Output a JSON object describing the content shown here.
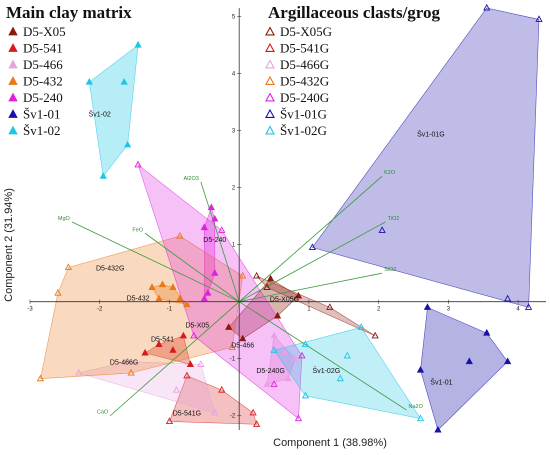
{
  "chart_data": {
    "type": "scatter",
    "xlabel": "Component 1 (38.98%)",
    "ylabel": "Component 2 (31.94%)",
    "xlim": [
      -3.0,
      4.4
    ],
    "ylim": [
      -2.25,
      5.15
    ],
    "xticks": [
      "-3",
      "-2",
      "-1",
      "1",
      "2",
      "3",
      "4"
    ],
    "xtick_values": [
      -3,
      -2,
      -1,
      1,
      2,
      3,
      4
    ],
    "yticks": [
      "-2",
      "-1",
      "1",
      "2",
      "3",
      "4",
      "5"
    ],
    "ytick_values": [
      -2,
      -1,
      1,
      2,
      3,
      4,
      5
    ],
    "legend_matrix_title": "Main clay matrix",
    "legend_clasts_title": "Argillaceous clasts/grog",
    "series": [
      {
        "name": "D5-X05",
        "color": "#8b1a0a",
        "marker": "filled",
        "label": "D5-X05",
        "points": [
          [
            0.85,
            0.1
          ],
          [
            0.45,
            0.4
          ],
          [
            0.05,
            -0.65
          ],
          [
            0.55,
            -0.25
          ],
          [
            -0.15,
            -0.45
          ]
        ]
      },
      {
        "name": "D5-541",
        "color": "#d81b1b",
        "marker": "filled",
        "label": "D5-541",
        "points": [
          [
            -1.35,
            -0.9
          ],
          [
            -1.15,
            -0.75
          ],
          [
            -0.95,
            -0.85
          ],
          [
            -0.7,
            -1.1
          ],
          [
            -0.8,
            -0.6
          ]
        ]
      },
      {
        "name": "D5-466",
        "color": "#e6a3e0",
        "marker": "filled",
        "label": "D5-466",
        "points": [
          [
            0.5,
            -0.6
          ],
          [
            0.65,
            -0.9
          ],
          [
            0.8,
            -1.0
          ],
          [
            0.4,
            -1.45
          ],
          [
            0.7,
            -1.35
          ]
        ]
      },
      {
        "name": "D5-432",
        "color": "#e8781a",
        "marker": "filled",
        "label": "D5-432",
        "points": [
          [
            -1.25,
            0.25
          ],
          [
            -1.1,
            0.3
          ],
          [
            -0.95,
            0.25
          ],
          [
            -1.15,
            0.05
          ],
          [
            -0.85,
            0.05
          ],
          [
            -0.75,
            -0.05
          ]
        ]
      },
      {
        "name": "D5-240",
        "color": "#e020e0",
        "marker": "filled",
        "label": "D5-240",
        "points": [
          [
            -0.4,
            1.65
          ],
          [
            -0.35,
            1.45
          ],
          [
            -0.5,
            1.3
          ],
          [
            -0.35,
            0.5
          ],
          [
            -0.45,
            0.15
          ],
          [
            -0.5,
            0.05
          ]
        ]
      },
      {
        "name": "Šv1-01",
        "color": "#1a12a8",
        "marker": "filled",
        "label": "Šv1-01",
        "points": [
          [
            3.3,
            -1.05
          ],
          [
            3.85,
            -1.05
          ],
          [
            3.55,
            -0.55
          ],
          [
            2.6,
            -1.2
          ],
          [
            2.85,
            -2.25
          ],
          [
            2.7,
            -0.1
          ]
        ]
      },
      {
        "name": "Šv1-02",
        "color": "#1ec6e6",
        "marker": "filled",
        "label": "Šv1-02",
        "points": [
          [
            -1.45,
            4.5
          ],
          [
            -2.15,
            3.85
          ],
          [
            -1.65,
            3.85
          ],
          [
            -1.6,
            2.75
          ],
          [
            -1.95,
            2.2
          ]
        ]
      },
      {
        "name": "D5-X05G",
        "color": "#8b1a0a",
        "marker": "open",
        "label": "D5-X05G",
        "points": [
          [
            0.4,
            0.25
          ],
          [
            1.3,
            -0.1
          ],
          [
            1.95,
            -0.6
          ],
          [
            0.25,
            0.45
          ]
        ]
      },
      {
        "name": "D5-541G",
        "color": "#d81b1b",
        "marker": "open",
        "label": "D5-541G",
        "points": [
          [
            -0.75,
            -1.3
          ],
          [
            -0.25,
            -1.55
          ],
          [
            0.2,
            -1.95
          ],
          [
            -1.0,
            -2.1
          ],
          [
            0.25,
            -2.15
          ]
        ]
      },
      {
        "name": "D5-466G",
        "color": "#e6a3e0",
        "marker": "open",
        "label": "D5-466G",
        "points": [
          [
            -1.6,
            -1.05
          ],
          [
            -2.3,
            -1.25
          ],
          [
            -0.55,
            -1.1
          ],
          [
            -0.9,
            -1.55
          ],
          [
            -0.35,
            -1.95
          ]
        ]
      },
      {
        "name": "D5-432G",
        "color": "#e8781a",
        "marker": "open",
        "label": "D5-432G",
        "points": [
          [
            -2.85,
            -1.35
          ],
          [
            -2.6,
            0.15
          ],
          [
            -2.45,
            0.6
          ],
          [
            -0.85,
            1.15
          ],
          [
            0.05,
            0.45
          ],
          [
            -0.1,
            -0.8
          ],
          [
            -1.55,
            -1.25
          ]
        ]
      },
      {
        "name": "D5-240G",
        "color": "#e020e0",
        "marker": "open",
        "label": "D5-240G",
        "points": [
          [
            -1.45,
            2.4
          ],
          [
            -0.25,
            1.25
          ],
          [
            0.9,
            -0.95
          ],
          [
            0.85,
            -2.05
          ],
          [
            0.5,
            -1.45
          ],
          [
            -0.65,
            -0.6
          ]
        ]
      },
      {
        "name": "Šv1-01G",
        "color": "#1a12a8",
        "marker": "open",
        "label": "Šv1-01G",
        "points": [
          [
            3.55,
            5.15
          ],
          [
            4.3,
            4.95
          ],
          [
            4.15,
            -0.1
          ],
          [
            3.85,
            0.05
          ],
          [
            1.05,
            0.95
          ],
          [
            2.05,
            1.25
          ]
        ]
      },
      {
        "name": "Šv1-02G",
        "color": "#1ec6e6",
        "marker": "open",
        "label": "Šv1-02G",
        "points": [
          [
            1.45,
            -1.35
          ],
          [
            0.95,
            -1.65
          ],
          [
            0.5,
            -0.85
          ],
          [
            0.95,
            -0.75
          ],
          [
            1.55,
            -0.95
          ],
          [
            2.6,
            -2.05
          ],
          [
            1.75,
            -0.45
          ]
        ]
      }
    ],
    "group_labels": [
      {
        "text": "Šv1-02",
        "x": -2.0,
        "y": 3.25
      },
      {
        "text": "Šv1-01G",
        "x": 2.75,
        "y": 2.9
      },
      {
        "text": "D5-240",
        "x": -0.35,
        "y": 1.05
      },
      {
        "text": "D5-432G",
        "x": -1.85,
        "y": 0.55
      },
      {
        "text": "D5-X05G",
        "x": 0.65,
        "y": 0.0
      },
      {
        "text": "D5-432",
        "x": -1.45,
        "y": 0.02
      },
      {
        "text": "D5-X05",
        "x": -0.6,
        "y": -0.45
      },
      {
        "text": "D5-541",
        "x": -1.1,
        "y": -0.7
      },
      {
        "text": "D5-466",
        "x": 0.05,
        "y": -0.8
      },
      {
        "text": "D5-466G",
        "x": -1.65,
        "y": -1.1
      },
      {
        "text": "D5-240G",
        "x": 0.45,
        "y": -1.25
      },
      {
        "text": "Šv1-02G",
        "x": 1.25,
        "y": -1.25
      },
      {
        "text": "Šv1-01",
        "x": 2.9,
        "y": -1.45
      },
      {
        "text": "D5-541G",
        "x": -0.75,
        "y": -2.0
      }
    ],
    "loadings": [
      {
        "label": "K2O",
        "x": 2.05,
        "y": 2.2
      },
      {
        "label": "TiO2",
        "x": 2.1,
        "y": 1.4
      },
      {
        "label": "SiO2",
        "x": 2.05,
        "y": 0.5
      },
      {
        "label": "Al2O3",
        "x": -0.55,
        "y": 2.1
      },
      {
        "label": "MgO",
        "x": -2.4,
        "y": 1.4
      },
      {
        "label": "FeO",
        "x": -1.35,
        "y": 1.2
      },
      {
        "label": "CaO",
        "x": -1.85,
        "y": -2.0
      },
      {
        "label": "Na2O",
        "x": 2.4,
        "y": -1.9
      }
    ]
  }
}
